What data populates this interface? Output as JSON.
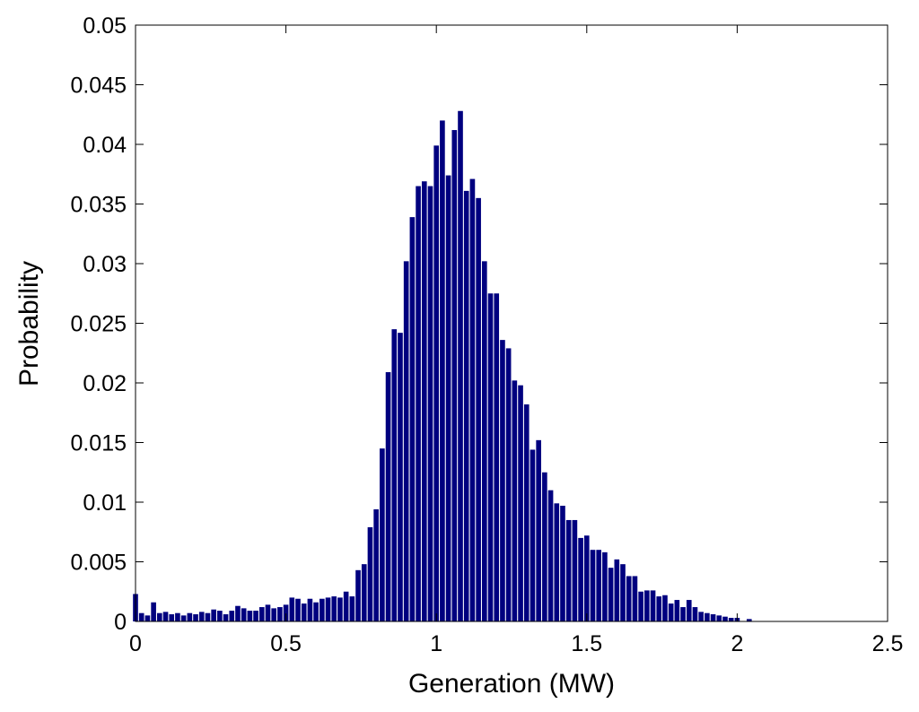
{
  "chart_data": {
    "type": "bar",
    "title": "",
    "xlabel": "Generation (MW)",
    "ylabel": "Probability",
    "xlim": [
      0,
      2.5
    ],
    "ylim": [
      0,
      0.05
    ],
    "xticks": [
      0,
      0.5,
      1,
      1.5,
      2,
      2.5
    ],
    "xtick_labels": [
      "0",
      "0.5",
      "1",
      "1.5",
      "2",
      "2.5"
    ],
    "yticks": [
      0,
      0.005,
      0.01,
      0.015,
      0.02,
      0.025,
      0.03,
      0.035,
      0.04,
      0.045,
      0.05
    ],
    "ytick_labels": [
      "0",
      "0.005",
      "0.01",
      "0.015",
      "0.02",
      "0.025",
      "0.03",
      "0.035",
      "0.04",
      "0.045",
      "0.05"
    ],
    "grid": false,
    "bar_color": "#00007f",
    "bin_width": 0.02,
    "x": [
      0.0,
      0.02,
      0.04,
      0.06,
      0.08,
      0.1,
      0.12,
      0.14,
      0.16,
      0.18,
      0.2,
      0.22,
      0.24,
      0.26,
      0.28,
      0.3,
      0.32,
      0.34,
      0.36,
      0.38,
      0.4,
      0.42,
      0.44,
      0.46,
      0.48,
      0.5,
      0.52,
      0.54,
      0.56,
      0.58,
      0.6,
      0.62,
      0.64,
      0.66,
      0.68,
      0.7,
      0.72,
      0.74,
      0.76,
      0.78,
      0.8,
      0.82,
      0.84,
      0.86,
      0.88,
      0.9,
      0.92,
      0.94,
      0.96,
      0.98,
      1.0,
      1.02,
      1.04,
      1.06,
      1.08,
      1.1,
      1.12,
      1.14,
      1.16,
      1.18,
      1.2,
      1.22,
      1.24,
      1.26,
      1.28,
      1.3,
      1.32,
      1.34,
      1.36,
      1.38,
      1.4,
      1.42,
      1.44,
      1.46,
      1.48,
      1.5,
      1.52,
      1.54,
      1.56,
      1.58,
      1.6,
      1.62,
      1.64,
      1.66,
      1.68,
      1.7,
      1.72,
      1.74,
      1.76,
      1.78,
      1.8,
      1.82,
      1.84,
      1.86,
      1.88,
      1.9,
      1.92,
      1.94,
      1.96,
      1.98,
      2.0,
      2.02,
      2.04
    ],
    "values": [
      0.0023,
      0.0007,
      0.0005,
      0.0016,
      0.0007,
      0.0008,
      0.0006,
      0.0007,
      0.0005,
      0.0007,
      0.0006,
      0.0008,
      0.0007,
      0.001,
      0.0009,
      0.0006,
      0.0009,
      0.0013,
      0.0011,
      0.0009,
      0.0009,
      0.0012,
      0.0014,
      0.0011,
      0.0012,
      0.0014,
      0.002,
      0.0019,
      0.0015,
      0.0019,
      0.0016,
      0.0019,
      0.002,
      0.0021,
      0.002,
      0.0025,
      0.0021,
      0.0043,
      0.0048,
      0.0079,
      0.0094,
      0.0145,
      0.0209,
      0.0245,
      0.0242,
      0.0302,
      0.0339,
      0.0365,
      0.0369,
      0.0365,
      0.0399,
      0.042,
      0.0374,
      0.0412,
      0.0428,
      0.0361,
      0.0371,
      0.0355,
      0.0302,
      0.0275,
      0.0275,
      0.0236,
      0.0229,
      0.0202,
      0.0198,
      0.0182,
      0.0144,
      0.0152,
      0.0125,
      0.011,
      0.0099,
      0.0097,
      0.0085,
      0.0085,
      0.007,
      0.0072,
      0.006,
      0.006,
      0.0058,
      0.0045,
      0.0052,
      0.0048,
      0.0038,
      0.0038,
      0.0025,
      0.0026,
      0.0026,
      0.0021,
      0.0022,
      0.0015,
      0.0018,
      0.0012,
      0.0018,
      0.0012,
      0.0008,
      0.0007,
      0.0006,
      0.0005,
      0.0004,
      0.0003,
      0.0003,
      0.0,
      0.0002
    ]
  }
}
